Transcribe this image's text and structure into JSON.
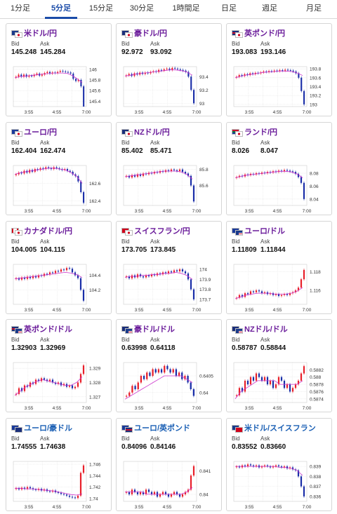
{
  "tabs": [
    {
      "label": "1分足",
      "active": false
    },
    {
      "label": "5分足",
      "active": true
    },
    {
      "label": "15分足",
      "active": false
    },
    {
      "label": "30分足",
      "active": false
    },
    {
      "label": "1時間足",
      "active": false
    },
    {
      "label": "日足",
      "active": false
    },
    {
      "label": "週足",
      "active": false
    },
    {
      "label": "月足",
      "active": false
    }
  ],
  "bid_label": "Bid",
  "ask_label": "Ask",
  "colors": {
    "up": "#e8202a",
    "down": "#1a2ea8",
    "ma": "#cc33cc",
    "ma_alt": "#4477dd",
    "pair_purple": "#6a1b9a",
    "pair_blue": "#1a5fb4"
  },
  "cards": [
    {
      "pair": "米ドル/円",
      "name_color": "purple",
      "flags": [
        "us",
        "jp"
      ],
      "bid": "145.248",
      "ask": "145.284",
      "chart_data": {
        "type": "candlestick",
        "x_labels": [
          "3:55",
          "4:55",
          "7:00"
        ],
        "y_ticks": [
          "146",
          "145.8",
          "145.6",
          "145.4"
        ],
        "ylim": [
          145.3,
          146.05
        ],
        "closes": [
          145.86,
          145.9,
          145.86,
          145.9,
          145.86,
          145.88,
          145.87,
          145.9,
          145.92,
          145.88,
          145.9,
          145.93,
          145.95,
          145.92,
          145.94,
          145.93,
          145.95,
          145.97,
          145.96,
          145.95,
          145.94,
          145.92,
          145.82,
          145.78,
          145.8,
          145.68,
          145.3
        ],
        "ma": [
          145.84,
          145.86,
          145.87,
          145.88,
          145.89,
          145.9,
          145.91,
          145.92,
          145.93,
          145.93,
          145.93,
          145.92,
          145.88,
          145.82,
          145.75
        ]
      }
    },
    {
      "pair": "豪ドル/円",
      "name_color": "purple",
      "flags": [
        "au",
        "jp"
      ],
      "bid": "92.972",
      "ask": "93.092",
      "chart_data": {
        "type": "candlestick",
        "x_labels": [
          "3:55",
          "4:55",
          "7:00"
        ],
        "y_ticks": [
          "93.4",
          "93.2",
          "93"
        ],
        "ylim": [
          92.95,
          93.55
        ],
        "closes": [
          93.42,
          93.44,
          93.41,
          93.45,
          93.43,
          93.46,
          93.44,
          93.46,
          93.45,
          93.47,
          93.48,
          93.47,
          93.5,
          93.49,
          93.51,
          93.52,
          93.5,
          93.53,
          93.52,
          93.51,
          93.5,
          93.49,
          93.47,
          93.4,
          93.2,
          93.0
        ],
        "ma": [
          93.41,
          93.42,
          93.44,
          93.45,
          93.46,
          93.47,
          93.48,
          93.49,
          93.5,
          93.5,
          93.49,
          93.47,
          93.42
        ]
      }
    },
    {
      "pair": "英ポンド/円",
      "name_color": "purple",
      "flags": [
        "gb",
        "jp"
      ],
      "bid": "193.083",
      "ask": "193.146",
      "chart_data": {
        "type": "candlestick",
        "x_labels": [
          "3:55",
          "4:55",
          "7:00"
        ],
        "y_ticks": [
          "193.8",
          "193.6",
          "193.4",
          "193.2",
          "193"
        ],
        "ylim": [
          192.95,
          193.85
        ],
        "closes": [
          193.62,
          193.66,
          193.64,
          193.68,
          193.66,
          193.7,
          193.68,
          193.71,
          193.7,
          193.72,
          193.74,
          193.73,
          193.75,
          193.74,
          193.76,
          193.75,
          193.77,
          193.76,
          193.78,
          193.77,
          193.76,
          193.74,
          193.7,
          193.6,
          193.3,
          193.0
        ],
        "ma": [
          193.6,
          193.63,
          193.66,
          193.68,
          193.7,
          193.72,
          193.73,
          193.74,
          193.75,
          193.75,
          193.74,
          193.71,
          193.65
        ]
      }
    },
    {
      "pair": "ユーロ/円",
      "name_color": "purple",
      "flags": [
        "eu",
        "jp"
      ],
      "bid": "162.404",
      "ask": "162.474",
      "chart_data": {
        "type": "candlestick",
        "x_labels": [
          "3:55",
          "4:55",
          "7:00"
        ],
        "y_ticks": [
          "162.6",
          "162.4"
        ],
        "ylim": [
          162.35,
          162.8
        ],
        "closes": [
          162.7,
          162.72,
          162.71,
          162.74,
          162.72,
          162.75,
          162.73,
          162.76,
          162.75,
          162.77,
          162.76,
          162.78,
          162.77,
          162.76,
          162.78,
          162.77,
          162.76,
          162.75,
          162.76,
          162.74,
          162.73,
          162.7,
          162.68,
          162.62,
          162.5,
          162.38
        ],
        "ma": [
          162.7,
          162.72,
          162.73,
          162.74,
          162.75,
          162.76,
          162.77,
          162.77,
          162.76,
          162.75,
          162.72,
          162.68,
          162.6
        ]
      }
    },
    {
      "pair": "NZドル/円",
      "name_color": "purple",
      "flags": [
        "nz",
        "jp"
      ],
      "bid": "85.402",
      "ask": "85.471",
      "chart_data": {
        "type": "candlestick",
        "x_labels": [
          "3:55",
          "4:55",
          "7:00"
        ],
        "y_ticks": [
          "85.8",
          "85.6"
        ],
        "ylim": [
          85.35,
          85.85
        ],
        "closes": [
          85.72,
          85.7,
          85.73,
          85.71,
          85.74,
          85.72,
          85.75,
          85.74,
          85.76,
          85.75,
          85.77,
          85.76,
          85.78,
          85.77,
          85.79,
          85.78,
          85.8,
          85.79,
          85.78,
          85.8,
          85.77,
          85.75,
          85.72,
          85.6,
          85.4
        ],
        "ma": [
          85.71,
          85.72,
          85.73,
          85.74,
          85.75,
          85.76,
          85.77,
          85.78,
          85.78,
          85.78,
          85.77,
          85.74,
          85.68
        ]
      }
    },
    {
      "pair": "ランド/円",
      "name_color": "purple",
      "flags": [
        "za",
        "jp"
      ],
      "bid": "8.026",
      "ask": "8.047",
      "chart_data": {
        "type": "candlestick",
        "x_labels": [
          "3:55",
          "4:55",
          "7:00"
        ],
        "y_ticks": [
          "8.08",
          "8.06",
          "8.04"
        ],
        "ylim": [
          8.03,
          8.092
        ],
        "closes": [
          8.074,
          8.076,
          8.075,
          8.078,
          8.077,
          8.079,
          8.078,
          8.08,
          8.079,
          8.081,
          8.08,
          8.082,
          8.081,
          8.083,
          8.082,
          8.084,
          8.083,
          8.085,
          8.084,
          8.083,
          8.082,
          8.079,
          8.074,
          8.065,
          8.04
        ],
        "ma": [
          8.073,
          8.075,
          8.077,
          8.078,
          8.079,
          8.08,
          8.081,
          8.082,
          8.083,
          8.083,
          8.082,
          8.079,
          8.073
        ]
      }
    },
    {
      "pair": "カナダドル/円",
      "name_color": "purple",
      "flags": [
        "ca",
        "jp"
      ],
      "bid": "104.005",
      "ask": "104.115",
      "chart_data": {
        "type": "candlestick",
        "x_labels": [
          "3:55",
          "4:55",
          "7:00"
        ],
        "y_ticks": [
          "104.4",
          "104.2"
        ],
        "ylim": [
          104.0,
          104.55
        ],
        "closes": [
          104.36,
          104.34,
          104.37,
          104.35,
          104.38,
          104.36,
          104.39,
          104.37,
          104.4,
          104.39,
          104.42,
          104.41,
          104.44,
          104.43,
          104.46,
          104.45,
          104.48,
          104.47,
          104.5,
          104.49,
          104.44,
          104.4,
          104.36,
          104.2,
          104.05
        ],
        "ma": [
          104.35,
          104.36,
          104.37,
          104.38,
          104.39,
          104.4,
          104.41,
          104.42,
          104.43,
          104.44,
          104.43,
          104.41,
          104.37
        ]
      }
    },
    {
      "pair": "スイスフラン/円",
      "name_color": "purple",
      "flags": [
        "ch",
        "jp"
      ],
      "bid": "173.705",
      "ask": "173.845",
      "chart_data": {
        "type": "candlestick",
        "x_labels": [
          "3:55",
          "4:55",
          "7:00"
        ],
        "y_ticks": [
          "174",
          "173.9",
          "173.8",
          "173.7"
        ],
        "ylim": [
          173.65,
          174.05
        ],
        "closes": [
          173.93,
          173.91,
          173.94,
          173.92,
          173.95,
          173.93,
          173.92,
          173.94,
          173.93,
          173.95,
          173.94,
          173.96,
          173.95,
          173.97,
          173.96,
          173.98,
          173.97,
          173.99,
          173.98,
          174.0,
          173.98,
          173.96,
          173.9,
          173.8,
          173.7
        ],
        "ma": [
          173.92,
          173.93,
          173.93,
          173.94,
          173.94,
          173.95,
          173.95,
          173.96,
          173.96,
          173.97,
          173.96,
          173.94,
          173.9
        ]
      }
    },
    {
      "pair": "ユーロ/ドル",
      "name_color": "purple",
      "flags": [
        "eu",
        "us"
      ],
      "bid": "1.11809",
      "ask": "1.11844",
      "chart_data": {
        "type": "candlestick",
        "x_labels": [
          "3:55",
          "4:55",
          "7:00"
        ],
        "y_ticks": [
          "1.118",
          "1.116"
        ],
        "ylim": [
          1.1145,
          1.1188
        ],
        "closes": [
          1.1152,
          1.1155,
          1.1153,
          1.1157,
          1.1156,
          1.1159,
          1.1158,
          1.116,
          1.1159,
          1.1157,
          1.1158,
          1.1156,
          1.1157,
          1.1155,
          1.1156,
          1.1154,
          1.1155,
          1.1156,
          1.1155,
          1.1157,
          1.1158,
          1.116,
          1.1163,
          1.1172,
          1.1182
        ],
        "ma": [
          1.1151,
          1.1153,
          1.1155,
          1.1156,
          1.1157,
          1.1157,
          1.1157,
          1.1156,
          1.1156,
          1.1156,
          1.1157,
          1.1159,
          1.1163
        ]
      }
    },
    {
      "pair": "英ポンド/ドル",
      "name_color": "purple",
      "flags": [
        "gb",
        "us"
      ],
      "bid": "1.32903",
      "ask": "1.32969",
      "chart_data": {
        "type": "candlestick",
        "x_labels": [
          "3:55",
          "4:55",
          "7:00"
        ],
        "y_ticks": [
          "1.329",
          "1.328",
          "1.327"
        ],
        "ylim": [
          1.3266,
          1.3294
        ],
        "closes": [
          1.3272,
          1.3276,
          1.3274,
          1.3278,
          1.3277,
          1.328,
          1.3279,
          1.3282,
          1.3281,
          1.3283,
          1.3282,
          1.3281,
          1.3282,
          1.328,
          1.3279,
          1.328,
          1.3278,
          1.3279,
          1.3277,
          1.3278,
          1.3276,
          1.3277,
          1.328,
          1.3286,
          1.3292
        ],
        "ma": [
          1.3271,
          1.3274,
          1.3277,
          1.3279,
          1.3281,
          1.3282,
          1.3281,
          1.328,
          1.3279,
          1.3278,
          1.3278,
          1.328,
          1.3284
        ]
      }
    },
    {
      "pair": "豪ドル/ドル",
      "name_color": "purple",
      "flags": [
        "au",
        "us"
      ],
      "bid": "0.63998",
      "ask": "0.64118",
      "chart_data": {
        "type": "candlestick",
        "x_labels": [
          "3:55",
          "4:55",
          "7:00"
        ],
        "y_ticks": [
          "0.6405",
          "0.64"
        ],
        "ylim": [
          0.6397,
          0.6409
        ],
        "closes": [
          0.6399,
          0.64,
          0.6402,
          0.6401,
          0.6403,
          0.6405,
          0.6404,
          0.6406,
          0.6405,
          0.6407,
          0.6406,
          0.6407,
          0.6406,
          0.6408,
          0.6407,
          0.6406,
          0.6407,
          0.6405,
          0.6406,
          0.6404,
          0.6405,
          0.6403,
          0.6401,
          0.6399
        ],
        "ma": [
          0.6398,
          0.6399,
          0.64,
          0.6401,
          0.6402,
          0.6403,
          0.6404,
          0.6405,
          0.6405,
          0.6405,
          0.6405,
          0.6404,
          0.6403
        ]
      }
    },
    {
      "pair": "NZドル/ドル",
      "name_color": "purple",
      "flags": [
        "nz",
        "us"
      ],
      "bid": "0.58787",
      "ask": "0.58844",
      "chart_data": {
        "type": "candlestick",
        "x_labels": [
          "3:55",
          "4:55",
          "7:00"
        ],
        "y_ticks": [
          "0.5882",
          "0.588",
          "0.5878",
          "0.5876",
          "0.5874"
        ],
        "ylim": [
          0.5873,
          0.5884
        ],
        "closes": [
          0.5875,
          0.5877,
          0.5876,
          0.5879,
          0.5878,
          0.588,
          0.5879,
          0.5881,
          0.588,
          0.5879,
          0.588,
          0.5878,
          0.5879,
          0.5877,
          0.5878,
          0.588,
          0.5879,
          0.5877,
          0.5878,
          0.5876,
          0.5877,
          0.5878,
          0.5879,
          0.5881,
          0.5883
        ],
        "ma": [
          0.5874,
          0.5876,
          0.5877,
          0.5878,
          0.5879,
          0.5879,
          0.5879,
          0.5879,
          0.5878,
          0.5878,
          0.5878,
          0.5878,
          0.5879
        ]
      }
    },
    {
      "pair": "ユーロ/豪ドル",
      "name_color": "blue",
      "flags": [
        "eu",
        "au"
      ],
      "bid": "1.74555",
      "ask": "1.74638",
      "chart_data": {
        "type": "candlestick",
        "x_labels": [
          "3:55",
          "4:55",
          "7:00"
        ],
        "y_ticks": [
          "1.746",
          "1.744",
          "1.742",
          "1.74"
        ],
        "ylim": [
          1.7395,
          1.7465
        ],
        "closes": [
          1.7418,
          1.7416,
          1.7419,
          1.7417,
          1.742,
          1.7418,
          1.7416,
          1.7415,
          1.7417,
          1.7414,
          1.7416,
          1.7413,
          1.7412,
          1.7414,
          1.7411,
          1.741,
          1.7408,
          1.7407,
          1.7405,
          1.7403,
          1.7402,
          1.7401,
          1.7405,
          1.7445,
          1.7458
        ],
        "ma": [
          1.7418,
          1.7418,
          1.7417,
          1.7417,
          1.7416,
          1.7415,
          1.7414,
          1.7413,
          1.7411,
          1.7409,
          1.7407,
          1.7406,
          1.7408
        ]
      }
    },
    {
      "pair": "ユーロ/英ポンド",
      "name_color": "blue",
      "flags": [
        "eu",
        "gb"
      ],
      "bid": "0.84096",
      "ask": "0.84146",
      "chart_data": {
        "type": "candlestick",
        "x_labels": [
          "3:55",
          "4:55",
          "7:00"
        ],
        "y_ticks": [
          "0.841",
          "0.84"
        ],
        "ylim": [
          0.8397,
          0.8414
        ],
        "closes": [
          0.8401,
          0.84,
          0.8402,
          0.8401,
          0.84,
          0.8401,
          0.84,
          0.8402,
          0.8401,
          0.84,
          0.8401,
          0.8399,
          0.84,
          0.8401,
          0.84,
          0.8399,
          0.84,
          0.8401,
          0.84,
          0.8399,
          0.84,
          0.8401,
          0.8402,
          0.8408,
          0.8412
        ],
        "ma": [
          0.8401,
          0.8401,
          0.8401,
          0.8401,
          0.84,
          0.84,
          0.84,
          0.84,
          0.84,
          0.84,
          0.84,
          0.8401,
          0.8403
        ]
      }
    },
    {
      "pair": "米ドル/スイスフラン",
      "name_color": "blue",
      "flags": [
        "us",
        "ch"
      ],
      "bid": "0.83552",
      "ask": "0.83660",
      "chart_data": {
        "type": "candlestick",
        "x_labels": [
          "3:55",
          "4:55",
          "7:00"
        ],
        "y_ticks": [
          "0.839",
          "0.838",
          "0.837",
          "0.836"
        ],
        "ylim": [
          0.8355,
          0.8395
        ],
        "closes": [
          0.839,
          0.8389,
          0.8391,
          0.839,
          0.8392,
          0.8391,
          0.839,
          0.8391,
          0.8389,
          0.839,
          0.8391,
          0.839,
          0.8389,
          0.839,
          0.8391,
          0.839,
          0.8389,
          0.839,
          0.8388,
          0.8389,
          0.8387,
          0.8386,
          0.838,
          0.837,
          0.836
        ],
        "ma": [
          0.839,
          0.839,
          0.839,
          0.839,
          0.839,
          0.839,
          0.839,
          0.839,
          0.8389,
          0.8389,
          0.8388,
          0.8386,
          0.8381
        ]
      }
    }
  ]
}
